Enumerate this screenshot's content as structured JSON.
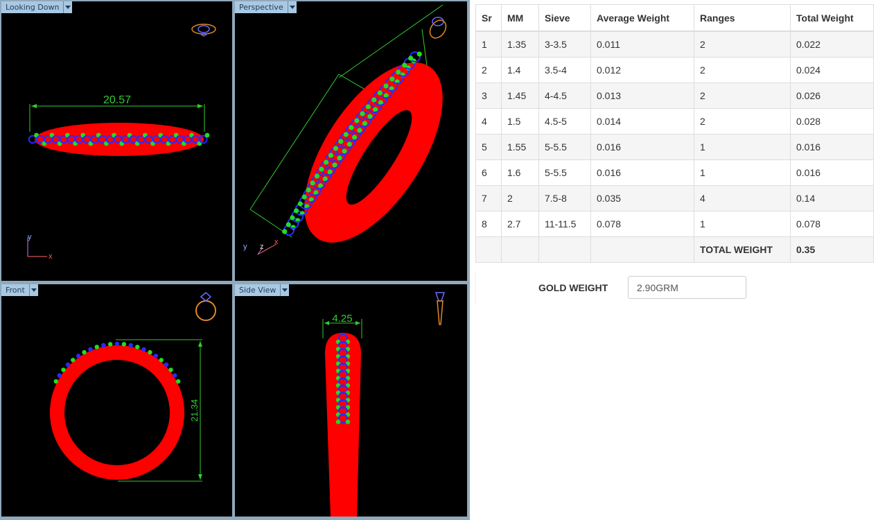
{
  "viewports": {
    "top_left": {
      "label": "Looking Down",
      "dimension": "20.57",
      "axes": {
        "v": "y",
        "h": "x"
      }
    },
    "top_right": {
      "label": "Perspective",
      "axes": {
        "a": "y",
        "b": "z",
        "c": "x"
      }
    },
    "bottom_left": {
      "label": "Front",
      "dimension": "21.34"
    },
    "bottom_right": {
      "label": "Side View",
      "dimension": "4.25"
    }
  },
  "colors": {
    "metal": "#ff0000",
    "stone_outline": "#2a2aff",
    "prong": "#22dd22",
    "dimension": "#33cc33",
    "thumbnail": "#e08a2a",
    "tab_bg": "#a9c9e3"
  },
  "table": {
    "headers": [
      "Sr",
      "MM",
      "Sieve",
      "Average Weight",
      "Ranges",
      "Total Weight"
    ],
    "rows": [
      [
        "1",
        "1.35",
        "3-3.5",
        "0.011",
        "2",
        "0.022"
      ],
      [
        "2",
        "1.4",
        "3.5-4",
        "0.012",
        "2",
        "0.024"
      ],
      [
        "3",
        "1.45",
        "4-4.5",
        "0.013",
        "2",
        "0.026"
      ],
      [
        "4",
        "1.5",
        "4.5-5",
        "0.014",
        "2",
        "0.028"
      ],
      [
        "5",
        "1.55",
        "5-5.5",
        "0.016",
        "1",
        "0.016"
      ],
      [
        "6",
        "1.6",
        "5-5.5",
        "0.016",
        "1",
        "0.016"
      ],
      [
        "7",
        "2",
        "7.5-8",
        "0.035",
        "4",
        "0.14"
      ],
      [
        "8",
        "2.7",
        "11-11.5",
        "0.078",
        "1",
        "0.078"
      ]
    ],
    "total_label": "TOTAL WEIGHT",
    "total_value": "0.35"
  },
  "gold_weight": {
    "label": "GOLD WEIGHT",
    "value": "2.90GRM"
  }
}
